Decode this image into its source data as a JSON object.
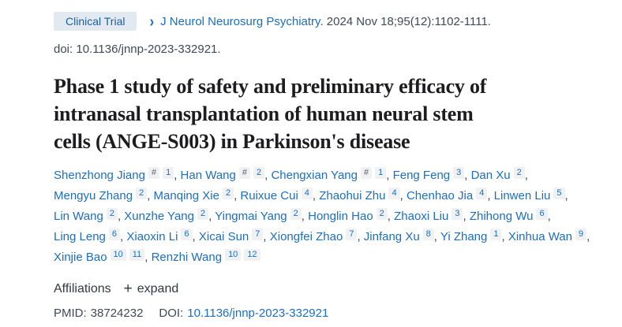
{
  "badge": {
    "label": "Clinical Trial"
  },
  "citation": {
    "chevron": "›",
    "journal_link": "J Neurol Neurosurg Psychiatry",
    "rest": ". 2024 Nov 18;95(12):1102-1111.",
    "doi_line": "doi: 10.1136/jnnp-2023-332921."
  },
  "title": {
    "full": "Phase 1 study of safety and preliminary efficacy of intranasal transplantation of human neural stem cells (ANGE-S003) in Parkinson's disease",
    "lines": [
      "Phase 1 study of safety and preliminary efficacy of",
      "intranasal transplantation of human neural stem",
      "cells (ANGE-S003) in Parkinson's disease"
    ]
  },
  "authors": [
    {
      "name": "Shenzhong Jiang",
      "sups": [
        "#",
        "1"
      ]
    },
    {
      "name": "Han Wang",
      "sups": [
        "#",
        "2"
      ]
    },
    {
      "name": "Chengxian Yang",
      "sups": [
        "#",
        "1"
      ]
    },
    {
      "name": "Feng Feng",
      "sups": [
        "3"
      ]
    },
    {
      "name": "Dan Xu",
      "sups": [
        "2"
      ]
    },
    {
      "name": "Mengyu Zhang",
      "sups": [
        "2"
      ]
    },
    {
      "name": "Manqing Xie",
      "sups": [
        "2"
      ]
    },
    {
      "name": "Ruixue Cui",
      "sups": [
        "4"
      ]
    },
    {
      "name": "Zhaohui Zhu",
      "sups": [
        "4"
      ]
    },
    {
      "name": "Chenhao Jia",
      "sups": [
        "4"
      ]
    },
    {
      "name": "Linwen Liu",
      "sups": [
        "5"
      ]
    },
    {
      "name": "Lin Wang",
      "sups": [
        "2"
      ]
    },
    {
      "name": "Xunzhe Yang",
      "sups": [
        "2"
      ]
    },
    {
      "name": "Yingmai Yang",
      "sups": [
        "2"
      ]
    },
    {
      "name": "Honglin Hao",
      "sups": [
        "2"
      ]
    },
    {
      "name": "Zhaoxi Liu",
      "sups": [
        "3"
      ]
    },
    {
      "name": "Zhihong Wu",
      "sups": [
        "6"
      ]
    },
    {
      "name": "Ling Leng",
      "sups": [
        "6"
      ]
    },
    {
      "name": "Xiaoxin Li",
      "sups": [
        "6"
      ]
    },
    {
      "name": "Xicai Sun",
      "sups": [
        "7"
      ]
    },
    {
      "name": "Xiongfei Zhao",
      "sups": [
        "7"
      ]
    },
    {
      "name": "Jinfang Xu",
      "sups": [
        "8"
      ]
    },
    {
      "name": "Yi Zhang",
      "sups": [
        "1"
      ]
    },
    {
      "name": "Xinhua Wan",
      "sups": [
        "9"
      ]
    },
    {
      "name": "Xinjie Bao",
      "sups": [
        "10",
        "11"
      ]
    },
    {
      "name": "Renzhi Wang",
      "sups": [
        "10",
        "12"
      ]
    }
  ],
  "affiliations": {
    "label": "Affiliations",
    "expand_icon": "+",
    "expand_label": "expand"
  },
  "identifiers": {
    "pmid_label": "PMID:",
    "pmid_value": "38724232",
    "doi_label": "DOI:",
    "doi_value": "10.1136/jnnp-2023-332921"
  },
  "colors": {
    "link_blue": "#1b6ec2",
    "badge_bg": "#e3e9f1",
    "badge_text": "#1c5f97",
    "dark_text": "#3f4955",
    "title_text": "#1d1d1f",
    "sup_bg": "#f0f1f3"
  }
}
